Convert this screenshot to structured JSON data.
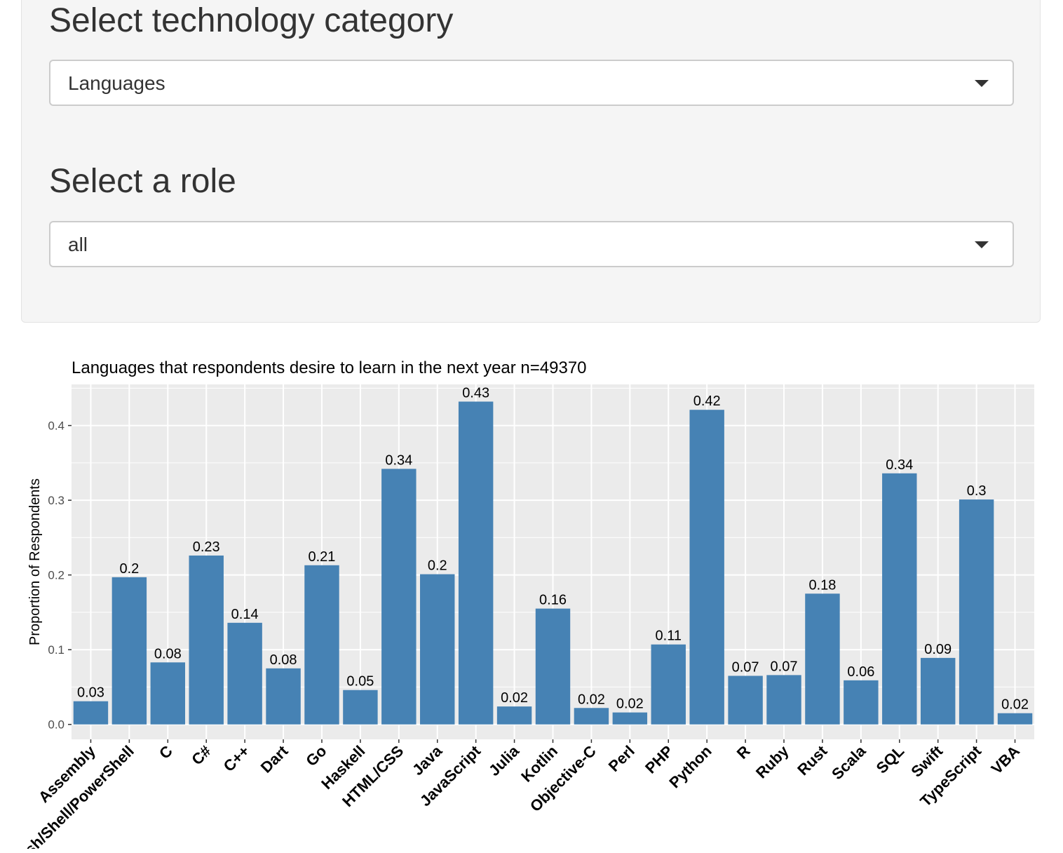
{
  "controls": {
    "category": {
      "label": "Select technology category",
      "selected": "Languages",
      "icon": "chevron-down-icon"
    },
    "role": {
      "label": "Select a role",
      "selected": "all",
      "icon": "chevron-down-icon"
    }
  },
  "colors": {
    "bar": "#4682B4",
    "panel_bg": "#EBEBEB",
    "grid": "#FFFFFF",
    "text": "#000000",
    "axis_text": "#4D4D4D"
  },
  "chart_data": {
    "type": "bar",
    "title": "Languages that respondents desire to learn in the next year n=49370",
    "xlabel": "",
    "ylabel": "Proportion of Respondents",
    "ylim": [
      -0.02,
      0.455
    ],
    "yticks": [
      0.0,
      0.1,
      0.2,
      0.3,
      0.4
    ],
    "ytick_labels": [
      "0.0",
      "0.1",
      "0.2",
      "0.3",
      "0.4"
    ],
    "grid": true,
    "legend": "none",
    "categories": [
      "Assembly",
      "Bash/Shell/PowerShell",
      "C",
      "C#",
      "C++",
      "Dart",
      "Go",
      "Haskell",
      "HTML/CSS",
      "Java",
      "JavaScript",
      "Julia",
      "Kotlin",
      "Objective-C",
      "Perl",
      "PHP",
      "Python",
      "R",
      "Ruby",
      "Rust",
      "Scala",
      "SQL",
      "Swift",
      "TypeScript",
      "VBA"
    ],
    "values": [
      0.031,
      0.197,
      0.083,
      0.226,
      0.136,
      0.075,
      0.213,
      0.046,
      0.342,
      0.201,
      0.432,
      0.024,
      0.155,
      0.022,
      0.016,
      0.107,
      0.421,
      0.065,
      0.066,
      0.175,
      0.059,
      0.336,
      0.089,
      0.301,
      0.015
    ],
    "data_labels": [
      "0.03",
      "0.2",
      "0.08",
      "0.23",
      "0.14",
      "0.08",
      "0.21",
      "0.05",
      "0.34",
      "0.2",
      "0.43",
      "0.02",
      "0.16",
      "0.02",
      "0.02",
      "0.11",
      "0.42",
      "0.07",
      "0.07",
      "0.18",
      "0.06",
      "0.34",
      "0.09",
      "0.3",
      "0.02"
    ]
  }
}
